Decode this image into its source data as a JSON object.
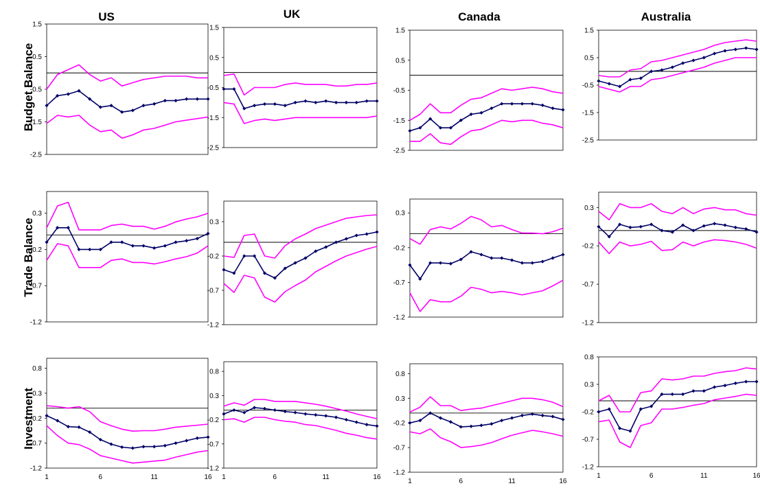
{
  "chart_data": {
    "type": "line",
    "columns": [
      "US",
      "UK",
      "Canada",
      "Australia"
    ],
    "rows": [
      "Budget Balance",
      "Trade Balance",
      "Investment"
    ],
    "x": [
      1,
      2,
      3,
      4,
      5,
      6,
      7,
      8,
      9,
      10,
      11,
      12,
      13,
      14,
      15,
      16
    ],
    "x_ticks": [
      1,
      6,
      11,
      16
    ],
    "colors": {
      "estimate": "#000066",
      "band": "#ff00ff",
      "zero": "#000000"
    },
    "series_roles": [
      "estimate",
      "upper band",
      "lower band"
    ],
    "panels": [
      {
        "column": "US",
        "row": "Budget Balance",
        "ylim": [
          -2.5,
          1.5
        ],
        "yticks": [
          "-2.5",
          "-1.5",
          "-0.5",
          "0.5",
          "1.5"
        ],
        "series": [
          {
            "role": "estimate",
            "values": [
              -1.0,
              -0.7,
              -0.65,
              -0.55,
              -0.8,
              -1.05,
              -1.0,
              -1.2,
              -1.15,
              -1.0,
              -0.95,
              -0.85,
              -0.85,
              -0.8,
              -0.8,
              -0.8
            ]
          },
          {
            "role": "upper",
            "values": [
              -0.5,
              -0.05,
              0.1,
              0.25,
              -0.05,
              -0.25,
              -0.15,
              -0.4,
              -0.3,
              -0.2,
              -0.15,
              -0.1,
              -0.1,
              -0.1,
              -0.15,
              -0.15
            ]
          },
          {
            "role": "lower",
            "values": [
              -1.55,
              -1.3,
              -1.35,
              -1.3,
              -1.6,
              -1.8,
              -1.75,
              -2.0,
              -1.9,
              -1.75,
              -1.7,
              -1.6,
              -1.5,
              -1.45,
              -1.4,
              -1.35
            ]
          }
        ]
      },
      {
        "column": "UK",
        "row": "Budget Balance",
        "ylim": [
          -2.5,
          1.5
        ],
        "yticks": [
          "-2.5",
          "-1.5",
          "-0.5",
          "0.5",
          "1.5"
        ],
        "series": [
          {
            "role": "estimate",
            "values": [
              -0.55,
              -0.55,
              -1.2,
              -1.1,
              -1.05,
              -1.05,
              -1.1,
              -1.0,
              -0.95,
              -1.0,
              -0.95,
              -1.0,
              -1.0,
              -1.0,
              -0.95,
              -0.95
            ]
          },
          {
            "role": "upper",
            "values": [
              -0.1,
              -0.05,
              -0.75,
              -0.5,
              -0.5,
              -0.5,
              -0.4,
              -0.35,
              -0.4,
              -0.4,
              -0.4,
              -0.45,
              -0.45,
              -0.4,
              -0.4,
              -0.35
            ]
          },
          {
            "role": "lower",
            "values": [
              -1.0,
              -1.05,
              -1.7,
              -1.6,
              -1.55,
              -1.6,
              -1.55,
              -1.5,
              -1.5,
              -1.5,
              -1.5,
              -1.5,
              -1.5,
              -1.5,
              -1.5,
              -1.45
            ]
          }
        ]
      },
      {
        "column": "Canada",
        "row": "Budget Balance",
        "ylim": [
          -2.5,
          1.5
        ],
        "yticks": [
          "-2.5",
          "-1.5",
          "-0.5",
          "0.5",
          "1.5"
        ],
        "series": [
          {
            "role": "estimate",
            "values": [
              -1.85,
              -1.75,
              -1.45,
              -1.75,
              -1.75,
              -1.5,
              -1.3,
              -1.25,
              -1.1,
              -0.95,
              -0.95,
              -0.95,
              -0.95,
              -1.0,
              -1.1,
              -1.15
            ]
          },
          {
            "role": "upper",
            "values": [
              -1.5,
              -1.3,
              -0.95,
              -1.25,
              -1.25,
              -1.0,
              -0.8,
              -0.75,
              -0.6,
              -0.45,
              -0.5,
              -0.45,
              -0.4,
              -0.45,
              -0.55,
              -0.6
            ]
          },
          {
            "role": "lower",
            "values": [
              -2.2,
              -2.2,
              -1.95,
              -2.25,
              -2.3,
              -2.05,
              -1.85,
              -1.8,
              -1.65,
              -1.5,
              -1.55,
              -1.5,
              -1.5,
              -1.6,
              -1.65,
              -1.75
            ]
          }
        ]
      },
      {
        "column": "Australia",
        "row": "Budget Balance",
        "ylim": [
          -2.5,
          1.5
        ],
        "yticks": [
          "-2.5",
          "-1.5",
          "-0.5",
          "0.5",
          "1.5"
        ],
        "series": [
          {
            "role": "estimate",
            "values": [
              -0.35,
              -0.45,
              -0.55,
              -0.3,
              -0.25,
              0.0,
              0.05,
              0.15,
              0.3,
              0.4,
              0.5,
              0.65,
              0.75,
              0.8,
              0.85,
              0.8
            ]
          },
          {
            "role": "upper",
            "values": [
              -0.15,
              -0.2,
              -0.2,
              0.05,
              0.1,
              0.35,
              0.4,
              0.5,
              0.6,
              0.7,
              0.8,
              0.95,
              1.05,
              1.1,
              1.15,
              1.1
            ]
          },
          {
            "role": "lower",
            "values": [
              -0.55,
              -0.65,
              -0.75,
              -0.55,
              -0.55,
              -0.3,
              -0.25,
              -0.15,
              -0.05,
              0.05,
              0.15,
              0.3,
              0.4,
              0.5,
              0.5,
              0.5
            ]
          }
        ]
      },
      {
        "column": "US",
        "row": "Trade Balance",
        "ylim": [
          -1.2,
          0.6
        ],
        "yticks": [
          "-1.2",
          "-0.7",
          "-0.2",
          "0.3"
        ],
        "series": [
          {
            "role": "estimate",
            "values": [
              -0.1,
              0.1,
              0.1,
              -0.2,
              -0.2,
              -0.2,
              -0.1,
              -0.1,
              -0.15,
              -0.15,
              -0.18,
              -0.15,
              -0.1,
              -0.08,
              -0.05,
              0.02
            ]
          },
          {
            "role": "upper",
            "values": [
              0.1,
              0.4,
              0.45,
              0.07,
              0.07,
              0.07,
              0.13,
              0.15,
              0.12,
              0.12,
              0.08,
              0.12,
              0.18,
              0.22,
              0.25,
              0.3
            ]
          },
          {
            "role": "lower",
            "values": [
              -0.35,
              -0.12,
              -0.15,
              -0.45,
              -0.45,
              -0.45,
              -0.35,
              -0.33,
              -0.38,
              -0.38,
              -0.4,
              -0.37,
              -0.33,
              -0.3,
              -0.25,
              -0.15
            ]
          }
        ]
      },
      {
        "column": "UK",
        "row": "Trade Balance",
        "ylim": [
          -1.2,
          0.6
        ],
        "yticks": [
          "-1.2",
          "-0.7",
          "-0.2",
          "0.3"
        ],
        "series": [
          {
            "role": "estimate",
            "values": [
              -0.4,
              -0.45,
              -0.2,
              -0.2,
              -0.45,
              -0.52,
              -0.38,
              -0.3,
              -0.23,
              -0.13,
              -0.07,
              0.0,
              0.05,
              0.1,
              0.12,
              0.15
            ]
          },
          {
            "role": "upper",
            "values": [
              -0.2,
              -0.22,
              0.1,
              0.12,
              -0.2,
              -0.23,
              -0.05,
              0.05,
              0.12,
              0.2,
              0.25,
              0.3,
              0.35,
              0.37,
              0.39,
              0.4
            ]
          },
          {
            "role": "lower",
            "values": [
              -0.6,
              -0.73,
              -0.48,
              -0.52,
              -0.8,
              -0.87,
              -0.72,
              -0.63,
              -0.55,
              -0.43,
              -0.35,
              -0.27,
              -0.2,
              -0.15,
              -0.1,
              -0.06
            ]
          }
        ]
      },
      {
        "column": "Canada",
        "row": "Trade Balance",
        "ylim": [
          -1.2,
          0.5
        ],
        "yticks": [
          "-1.2",
          "-0.7",
          "-0.2",
          "0.3"
        ],
        "series": [
          {
            "role": "estimate",
            "values": [
              -0.45,
              -0.65,
              -0.42,
              -0.42,
              -0.43,
              -0.37,
              -0.26,
              -0.3,
              -0.35,
              -0.35,
              -0.38,
              -0.42,
              -0.42,
              -0.4,
              -0.35,
              -0.3
            ]
          },
          {
            "role": "upper",
            "values": [
              -0.07,
              -0.15,
              0.06,
              0.1,
              0.07,
              0.15,
              0.25,
              0.2,
              0.1,
              0.12,
              0.06,
              0.01,
              0.01,
              0.0,
              0.03,
              0.08
            ]
          },
          {
            "role": "lower",
            "values": [
              -0.85,
              -1.12,
              -0.95,
              -0.98,
              -0.98,
              -0.9,
              -0.77,
              -0.8,
              -0.85,
              -0.83,
              -0.85,
              -0.88,
              -0.85,
              -0.82,
              -0.75,
              -0.67
            ]
          }
        ]
      },
      {
        "column": "Australia",
        "row": "Trade Balance",
        "ylim": [
          -1.2,
          0.5
        ],
        "yticks": [
          "-1.2",
          "-0.7",
          "-0.2",
          "0.3"
        ],
        "series": [
          {
            "role": "estimate",
            "values": [
              0.05,
              -0.08,
              0.08,
              0.04,
              0.05,
              0.08,
              0.0,
              -0.02,
              0.07,
              0.0,
              0.06,
              0.09,
              0.07,
              0.04,
              0.02,
              -0.02
            ]
          },
          {
            "role": "upper",
            "values": [
              0.25,
              0.14,
              0.35,
              0.3,
              0.3,
              0.35,
              0.25,
              0.22,
              0.3,
              0.22,
              0.28,
              0.3,
              0.27,
              0.27,
              0.22,
              0.2
            ]
          },
          {
            "role": "lower",
            "values": [
              -0.15,
              -0.3,
              -0.15,
              -0.2,
              -0.18,
              -0.14,
              -0.26,
              -0.25,
              -0.15,
              -0.2,
              -0.15,
              -0.12,
              -0.13,
              -0.15,
              -0.18,
              -0.23
            ]
          }
        ]
      },
      {
        "column": "US",
        "row": "Investment",
        "ylim": [
          -1.2,
          1.0
        ],
        "yticks": [
          "-1.2",
          "-0.7",
          "-0.2",
          "0.3",
          "0.8"
        ],
        "series": [
          {
            "role": "estimate",
            "values": [
              -0.15,
              -0.25,
              -0.37,
              -0.38,
              -0.48,
              -0.63,
              -0.72,
              -0.78,
              -0.8,
              -0.77,
              -0.77,
              -0.75,
              -0.7,
              -0.65,
              -0.6,
              -0.58
            ]
          },
          {
            "role": "upper",
            "values": [
              0.05,
              0.03,
              0.0,
              0.03,
              -0.07,
              -0.27,
              -0.35,
              -0.42,
              -0.46,
              -0.45,
              -0.45,
              -0.42,
              -0.38,
              -0.36,
              -0.34,
              -0.32
            ]
          },
          {
            "role": "lower",
            "values": [
              -0.35,
              -0.55,
              -0.7,
              -0.73,
              -0.82,
              -0.95,
              -1.0,
              -1.05,
              -1.1,
              -1.08,
              -1.06,
              -1.04,
              -0.98,
              -0.93,
              -0.88,
              -0.85
            ]
          }
        ]
      },
      {
        "column": "UK",
        "row": "Investment",
        "ylim": [
          -1.2,
          1.0
        ],
        "yticks": [
          "-1.2",
          "-0.7",
          "-0.2",
          "0.3",
          "0.8"
        ],
        "series": [
          {
            "role": "estimate",
            "values": [
              -0.08,
              0.0,
              -0.05,
              0.05,
              0.03,
              0.0,
              -0.03,
              -0.05,
              -0.08,
              -0.1,
              -0.12,
              -0.15,
              -0.2,
              -0.25,
              -0.3,
              -0.33
            ]
          },
          {
            "role": "upper",
            "values": [
              0.08,
              0.15,
              0.1,
              0.22,
              0.22,
              0.18,
              0.18,
              0.18,
              0.15,
              0.12,
              0.08,
              0.03,
              -0.02,
              -0.08,
              -0.13,
              -0.18
            ]
          },
          {
            "role": "lower",
            "values": [
              -0.2,
              -0.18,
              -0.25,
              -0.15,
              -0.15,
              -0.2,
              -0.23,
              -0.25,
              -0.3,
              -0.32,
              -0.37,
              -0.42,
              -0.48,
              -0.52,
              -0.57,
              -0.6
            ]
          }
        ]
      },
      {
        "column": "Canada",
        "row": "Investment",
        "ylim": [
          -1.2,
          1.0
        ],
        "yticks": [
          "-1.2",
          "-0.7",
          "-0.2",
          "0.3",
          "0.8"
        ],
        "series": [
          {
            "role": "estimate",
            "values": [
              -0.2,
              -0.15,
              0.0,
              -0.1,
              -0.18,
              -0.28,
              -0.27,
              -0.25,
              -0.22,
              -0.15,
              -0.1,
              -0.05,
              -0.02,
              -0.05,
              -0.07,
              -0.13
            ]
          },
          {
            "role": "upper",
            "values": [
              0.02,
              0.12,
              0.33,
              0.15,
              0.15,
              0.05,
              0.08,
              0.1,
              0.15,
              0.2,
              0.25,
              0.3,
              0.3,
              0.27,
              0.22,
              0.13
            ]
          },
          {
            "role": "lower",
            "values": [
              -0.38,
              -0.42,
              -0.32,
              -0.5,
              -0.58,
              -0.7,
              -0.68,
              -0.65,
              -0.6,
              -0.52,
              -0.45,
              -0.4,
              -0.35,
              -0.38,
              -0.42,
              -0.47
            ]
          }
        ]
      },
      {
        "column": "Australia",
        "row": "Investment",
        "ylim": [
          -1.2,
          0.8
        ],
        "yticks": [
          "-1.2",
          "-0.7",
          "-0.2",
          "0.3",
          "0.8"
        ],
        "series": [
          {
            "role": "estimate",
            "values": [
              -0.2,
              -0.15,
              -0.5,
              -0.55,
              -0.15,
              -0.1,
              0.12,
              0.12,
              0.12,
              0.18,
              0.18,
              0.25,
              0.28,
              0.32,
              0.35,
              0.35
            ]
          },
          {
            "role": "upper",
            "values": [
              0.0,
              0.1,
              -0.2,
              -0.2,
              0.15,
              0.18,
              0.4,
              0.38,
              0.4,
              0.45,
              0.45,
              0.5,
              0.53,
              0.55,
              0.6,
              0.58
            ]
          },
          {
            "role": "lower",
            "values": [
              -0.38,
              -0.35,
              -0.75,
              -0.85,
              -0.45,
              -0.4,
              -0.15,
              -0.15,
              -0.12,
              -0.08,
              -0.05,
              0.02,
              0.05,
              0.08,
              0.12,
              0.1
            ]
          }
        ]
      }
    ]
  }
}
